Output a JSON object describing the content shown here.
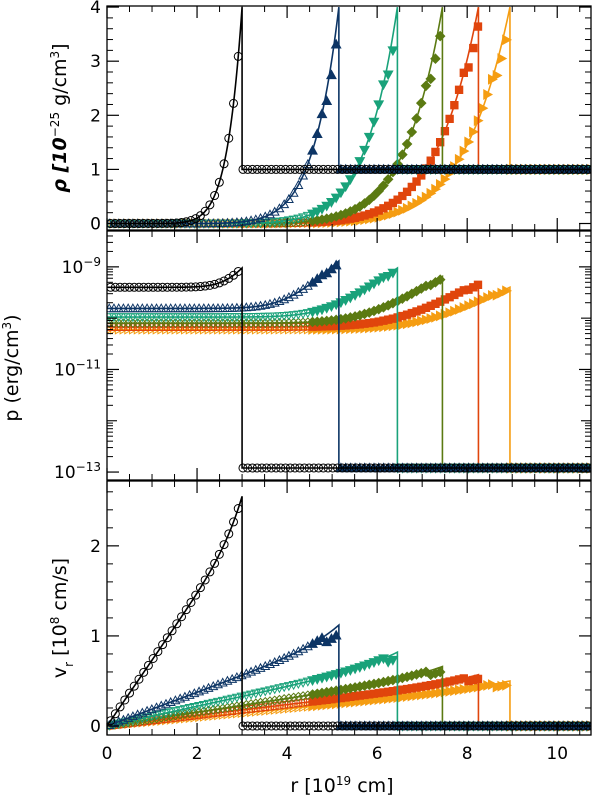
{
  "chart_data": {
    "type": "line",
    "series_styles": [
      {
        "color": "#000000",
        "marker": "circle",
        "filled": false,
        "t_index": 0
      },
      {
        "color": "#0d3565",
        "marker": "triangle-up",
        "filled": true,
        "t_index": 1
      },
      {
        "color": "#19a27a",
        "marker": "triangle-down",
        "filled": true,
        "t_index": 2
      },
      {
        "color": "#5b7a12",
        "marker": "diamond",
        "filled": true,
        "t_index": 3
      },
      {
        "color": "#e0450c",
        "marker": "square",
        "filled": true,
        "t_index": 4
      },
      {
        "color": "#f59d12",
        "marker": "triangle-right",
        "filled": true,
        "t_index": 5
      }
    ],
    "shock_radius": [
      3.0,
      5.15,
      6.45,
      7.45,
      8.25,
      8.95
    ],
    "ambient": {
      "density": 1.0,
      "pressure": 1.2e-13,
      "velocity": 0.0
    },
    "post_shock_pressure": [
      9.5e-10,
      1.3e-09,
      9.5e-10,
      6.5e-10,
      4.9e-10,
      4e-10
    ],
    "center_pressure": [
      4e-10,
      1.55e-10,
      1.05e-10,
      8e-11,
      6.7e-11,
      6e-11
    ],
    "post_shock_velocity": [
      2.55,
      1.12,
      0.82,
      0.66,
      0.57,
      0.5
    ],
    "x_axis": {
      "label_main": "r  [10",
      "label_sup": "19",
      "label_tail": " cm]",
      "range": [
        0,
        10.75
      ],
      "ticks": [
        "0",
        "2",
        "4",
        "6",
        "8",
        "10"
      ]
    },
    "panels": [
      {
        "id": "density",
        "label_main": "ρ  [10",
        "label_sup": "−25",
        "label_tail": " g/cm",
        "label_sup2": "3",
        "label_end": "]",
        "scale": "linear",
        "range": [
          -0.12,
          4.02
        ],
        "ticks": [
          "0",
          "1",
          "2",
          "3",
          "4"
        ]
      },
      {
        "id": "pressure",
        "label_main": "p  (erg/cm",
        "label_sup": "3",
        "label_tail": ")",
        "scale": "log",
        "range": [
          7e-14,
          5e-09
        ],
        "ticks": [
          {
            "base": "10",
            "exp": "−9",
            "value": 1e-09
          },
          {
            "base": "10",
            "exp": "−11",
            "value": 1e-11
          },
          {
            "base": "10",
            "exp": "−13",
            "value": 1e-13
          }
        ]
      },
      {
        "id": "velocity",
        "label_main": "v",
        "label_sub": "r",
        "label_mid": "  [10",
        "label_sup": "8",
        "label_tail": " cm/s]",
        "scale": "linear",
        "range": [
          -0.1,
          2.72
        ],
        "ticks": [
          "0",
          "1",
          "2"
        ]
      }
    ]
  }
}
